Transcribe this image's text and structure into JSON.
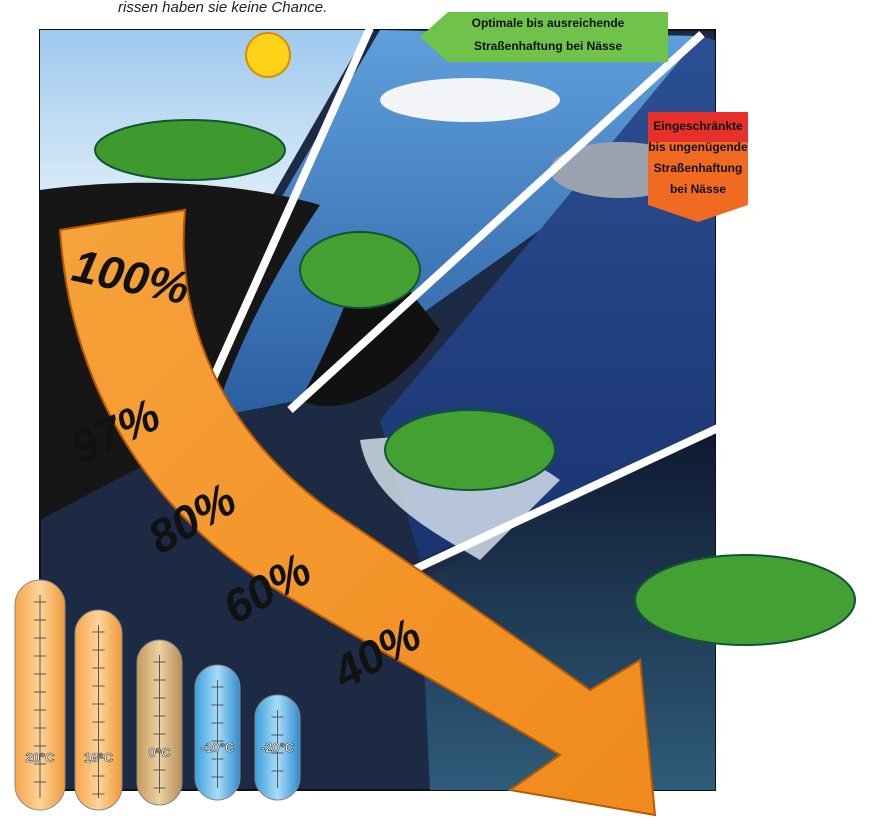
{
  "caption": "rissen haben sie keine Chance.",
  "badges": [
    {
      "lines": [
        "Optimale bis ausreichende",
        "Straßenhaftung bei Nässe"
      ]
    },
    {
      "lines": [
        "Eingeschränkte",
        "bis ungenügende",
        "Straßenhaftung",
        "bei Nässe"
      ]
    }
  ],
  "percentages": [
    "100%",
    "97%",
    "80%",
    "60%",
    "40%"
  ],
  "temperatures": [
    "20°C",
    "10°C",
    "0°C",
    "-10°C",
    "-20°C"
  ]
}
